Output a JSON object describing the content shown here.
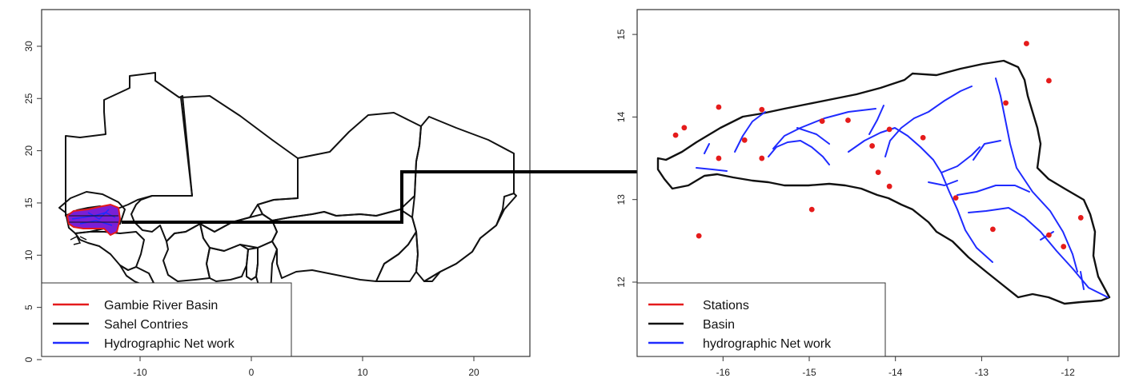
{
  "colors": {
    "basin_red": "#e41a1c",
    "country_black": "#111111",
    "river_blue": "#1f2bff",
    "station_red": "#e51b1b"
  },
  "left_map": {
    "x_ticks": [
      "-10",
      "0",
      "10",
      "20"
    ],
    "y_ticks": [
      "0",
      "5",
      "10",
      "15",
      "20",
      "25",
      "30"
    ],
    "legend": [
      {
        "label": "Gambie River Basin",
        "color": "#e41a1c"
      },
      {
        "label": "Sahel Contries",
        "color": "#111111"
      },
      {
        "label": "Hydrographic Net work",
        "color": "#1f2bff"
      }
    ]
  },
  "right_map": {
    "x_ticks": [
      "-16",
      "-15",
      "-14",
      "-13",
      "-12"
    ],
    "y_ticks": [
      "12",
      "13",
      "14",
      "15"
    ],
    "legend": [
      {
        "label": "Stations",
        "color": "#e41a1c"
      },
      {
        "label": "Basin",
        "color": "#111111"
      },
      {
        "label": "hydrographic Net work",
        "color": "#1f2bff"
      }
    ],
    "stations": [
      [
        -16.55,
        13.78
      ],
      [
        -16.45,
        13.87
      ],
      [
        -16.05,
        14.12
      ],
      [
        -15.55,
        14.09
      ],
      [
        -15.75,
        13.72
      ],
      [
        -15.55,
        13.5
      ],
      [
        -16.05,
        13.5
      ],
      [
        -14.85,
        13.95
      ],
      [
        -14.55,
        13.96
      ],
      [
        -14.07,
        13.85
      ],
      [
        -13.68,
        13.75
      ],
      [
        -14.27,
        13.65
      ],
      [
        -14.2,
        13.33
      ],
      [
        -14.07,
        13.16
      ],
      [
        -13.3,
        13.02
      ],
      [
        -12.72,
        14.17
      ],
      [
        -12.48,
        14.89
      ],
      [
        -12.22,
        14.44
      ],
      [
        -14.97,
        12.88
      ],
      [
        -16.28,
        12.56
      ],
      [
        -12.87,
        12.64
      ],
      [
        -12.22,
        12.57
      ],
      [
        -12.05,
        12.43
      ],
      [
        -11.85,
        12.78
      ]
    ]
  }
}
